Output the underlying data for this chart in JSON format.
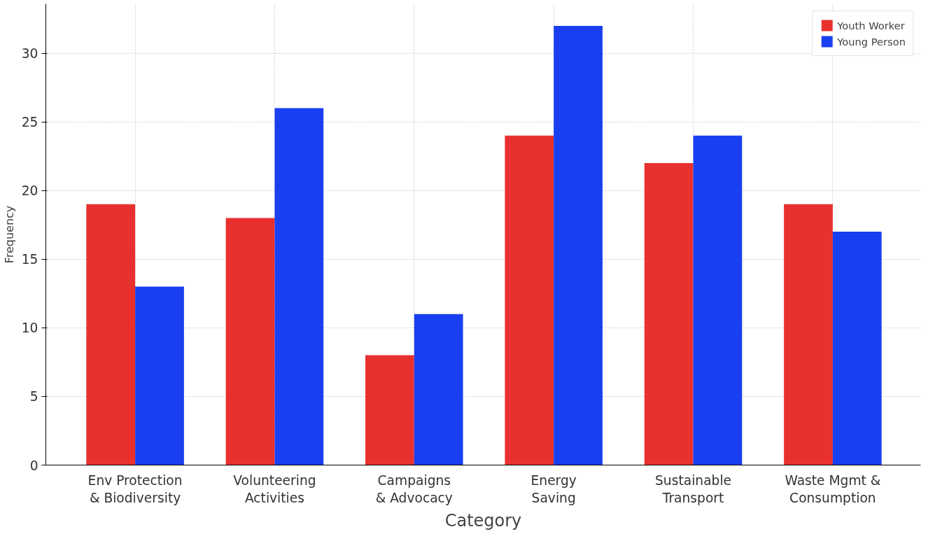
{
  "chart_data": {
    "type": "bar",
    "xlabel": "Category",
    "ylabel": "Frequency",
    "categories": [
      "Env Protection\n& Biodiversity",
      "Volunteering\nActivities",
      "Campaigns\n& Advocacy",
      "Energy\nSaving",
      "Sustainable\nTransport",
      "Waste Mgmt &\nConsumption"
    ],
    "series": [
      {
        "name": "Youth Worker",
        "color": "#e8312f",
        "values": [
          19,
          18,
          8,
          24,
          22,
          19
        ]
      },
      {
        "name": "Young Person",
        "color": "#1a3ff0",
        "values": [
          13,
          26,
          11,
          32,
          24,
          17
        ]
      }
    ],
    "ylim": [
      0,
      33.6
    ],
    "yticks": [
      0,
      5,
      10,
      15,
      20,
      25,
      30
    ],
    "grid": true,
    "legend": "top right"
  }
}
